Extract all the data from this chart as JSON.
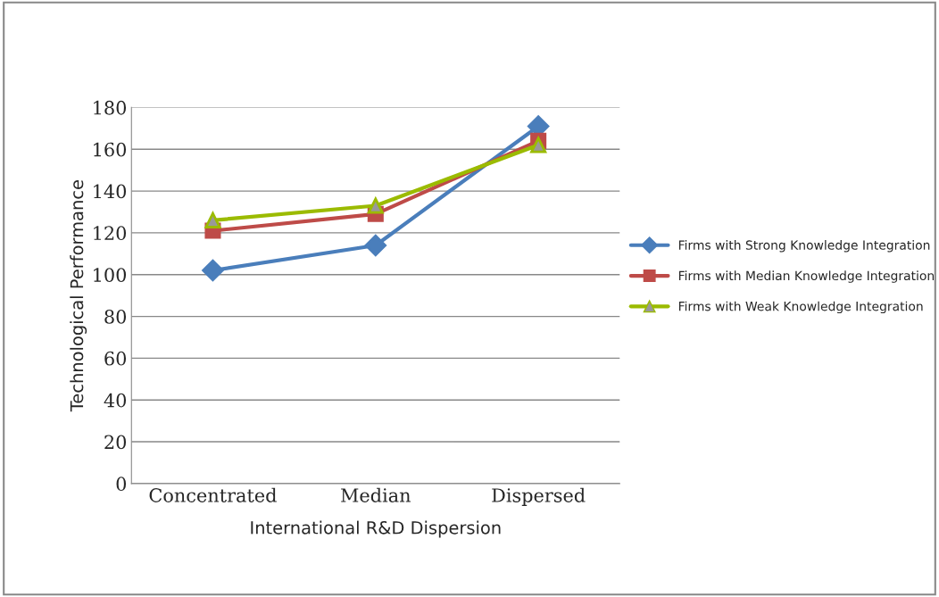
{
  "chart_data": {
    "type": "line",
    "xlabel": "International R&D Dispersion",
    "ylabel": "Technological Performance",
    "categories": [
      "Concentrated",
      "Median",
      "Dispersed"
    ],
    "series": [
      {
        "name": "Firms with Strong Knowledge Integration",
        "color": "#4a7ebb",
        "marker": "diamond",
        "values": [
          102,
          114,
          171
        ]
      },
      {
        "name": "Firms with Median Knowledge Integration",
        "color": "#be4b48",
        "marker": "square",
        "values": [
          121,
          129,
          164
        ]
      },
      {
        "name": "Firms with Weak Knowledge Integration",
        "color": "#9bbb00",
        "marker": "triangle",
        "values": [
          126,
          133,
          162
        ]
      }
    ],
    "ylim": [
      0,
      180
    ],
    "yticks": [
      0,
      20,
      40,
      60,
      80,
      100,
      120,
      140,
      160,
      180
    ],
    "grid": "y",
    "legend": "right"
  }
}
